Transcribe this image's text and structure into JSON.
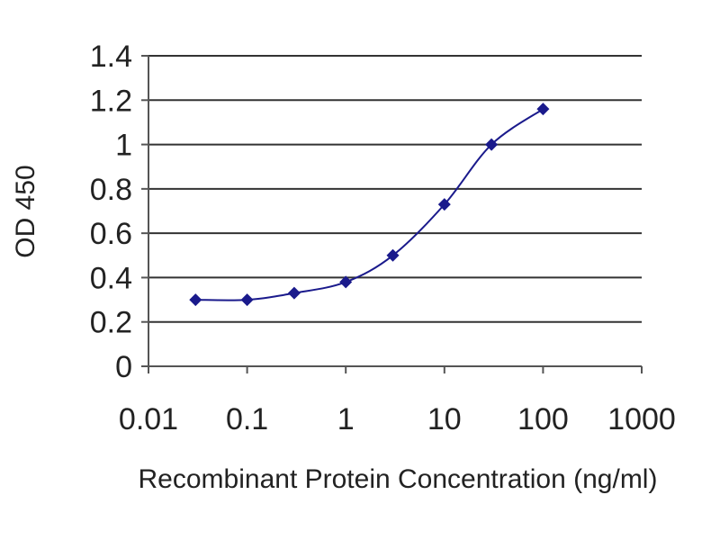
{
  "chart_data": {
    "type": "line",
    "xlabel": "Recombinant Protein Concentration (ng/ml)",
    "ylabel": "OD 450",
    "x_scale": "log",
    "xlim": [
      0.01,
      1000
    ],
    "ylim": [
      0,
      1.4
    ],
    "x_ticks": [
      "0.01",
      "0.1",
      "1",
      "10",
      "100",
      "1000"
    ],
    "y_ticks": [
      "0",
      "0.2",
      "0.4",
      "0.6",
      "0.8",
      "1",
      "1.2",
      "1.4"
    ],
    "grid": "horizontal",
    "legend": "none",
    "series": [
      {
        "color": "#1a1a8c",
        "marker": "diamond",
        "x": [
          0.03,
          0.1,
          0.3,
          1,
          3,
          10,
          30,
          100
        ],
        "y": [
          0.3,
          0.3,
          0.33,
          0.38,
          0.5,
          0.73,
          1.0,
          1.16
        ]
      }
    ]
  }
}
